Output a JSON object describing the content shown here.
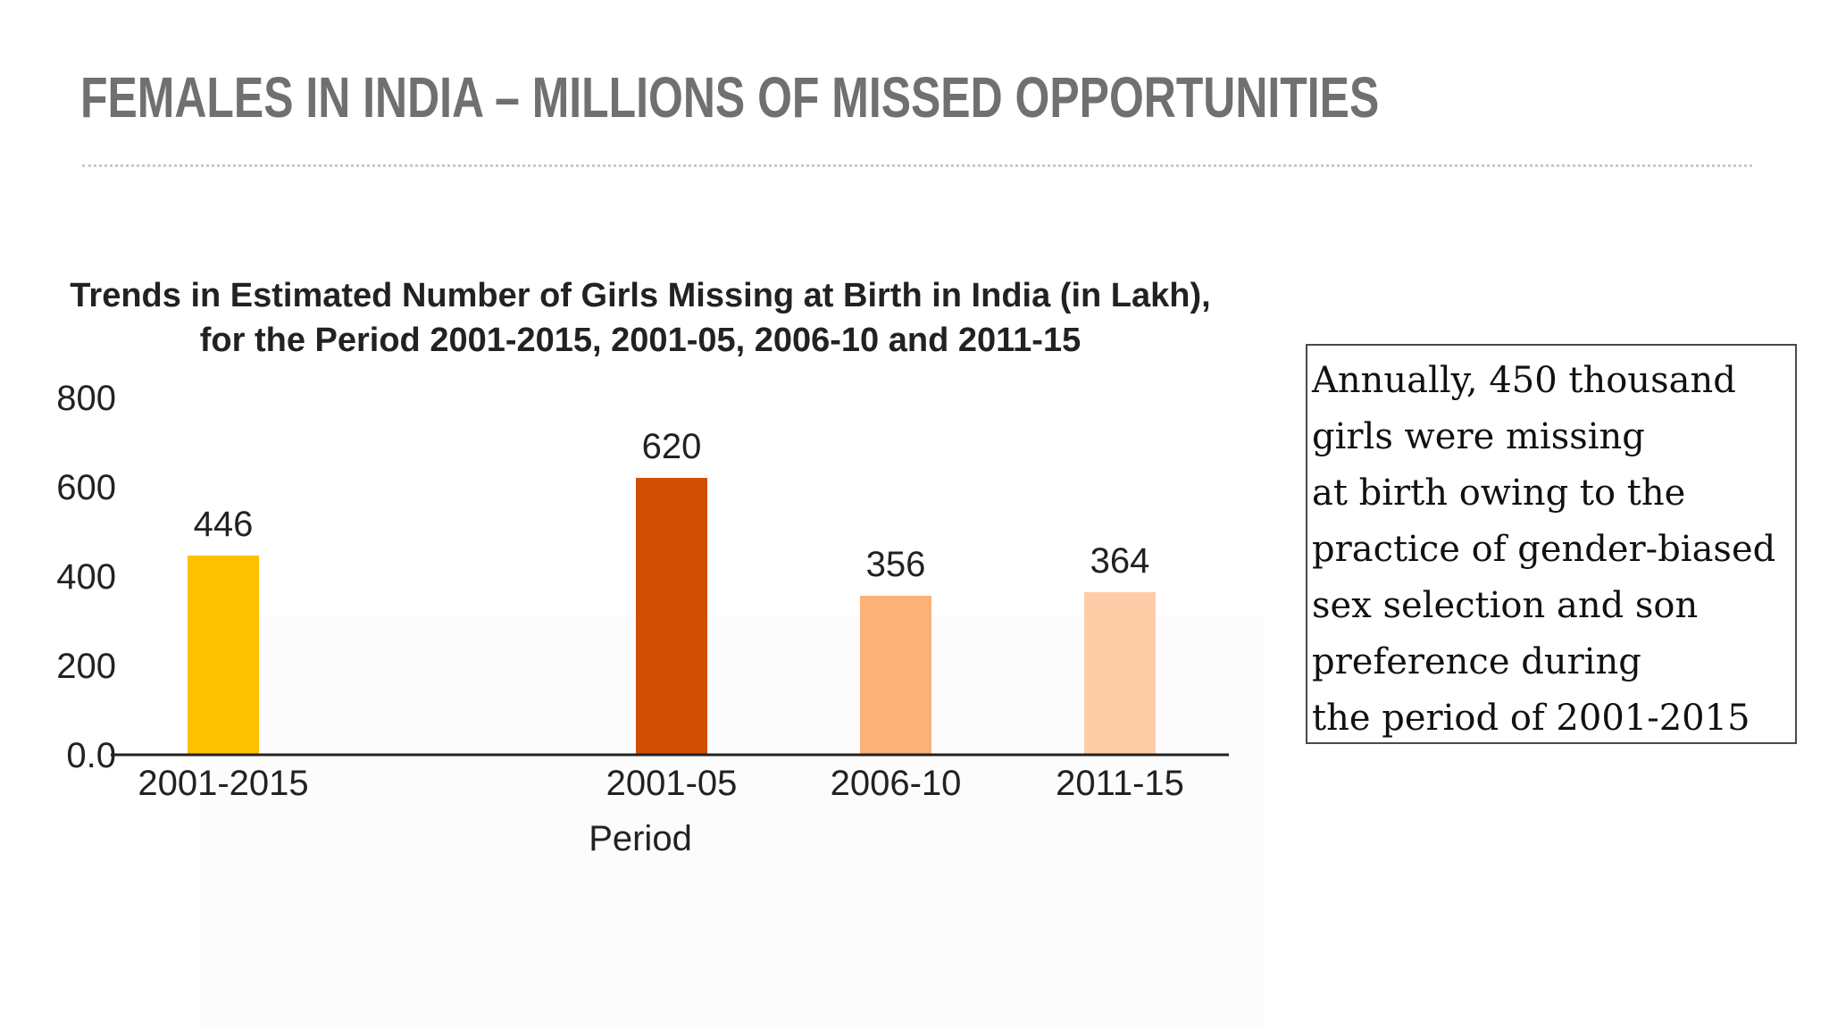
{
  "slide": {
    "title": "FEMALES IN INDIA – MILLIONS OF MISSED OPPORTUNITIES"
  },
  "annotation": {
    "lines": [
      "Annually, 450 thousand",
      "girls were missing",
      "at birth owing to the",
      "practice of gender-biased",
      "sex selection and son",
      "preference during",
      "the period of 2001-2015"
    ]
  },
  "chart_data": {
    "type": "bar",
    "title": "Trends in Estimated Number of Girls Missing at Birth in India (in Lakh),",
    "subtitle": "for the Period 2001-2015, 2001-05, 2006-10 and 2011-15",
    "xlabel": "Period",
    "ylabel": "",
    "categories": [
      "2001-2015",
      "2001-05",
      "2006-10",
      "2011-15"
    ],
    "values": [
      446,
      620,
      356,
      364
    ],
    "value_labels": [
      "446",
      "620",
      "356",
      "364"
    ],
    "colors": [
      "#FCC200",
      "#D14F02",
      "#FBB278",
      "#FFCCA8"
    ],
    "ylim": [
      0,
      800
    ],
    "yticks": [
      0,
      200,
      400,
      600,
      800
    ],
    "ytick_labels": [
      "0.0",
      "200",
      "400",
      "600",
      "800"
    ],
    "grid": false,
    "legend": "none"
  }
}
